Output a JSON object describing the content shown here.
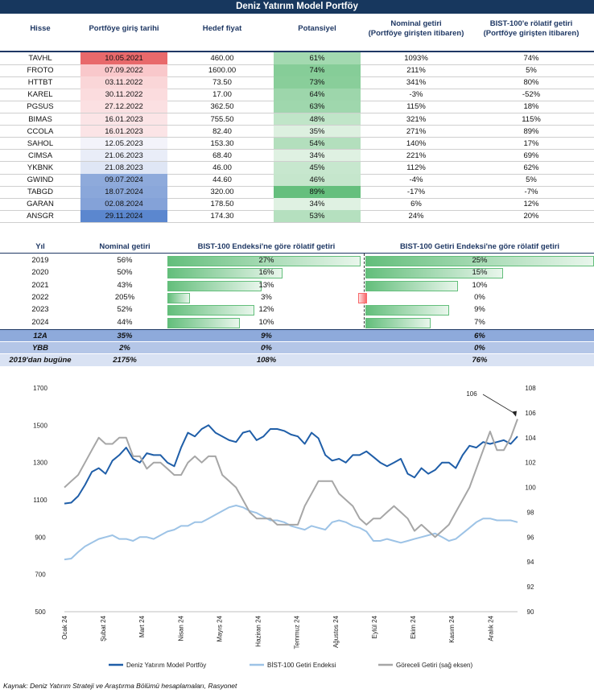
{
  "title": "Deniz Yatırım Model Portföy",
  "table1": {
    "headers": {
      "hisse": "Hisse",
      "giris": "Portföye giriş tarihi",
      "hedef": "Hedef fiyat",
      "potansiyel": "Potansiyel",
      "nominal_1": "Nominal getiri",
      "nominal_2": "(Portföye girişten itibaren)",
      "bist_1": "BIST-100'e rölatif getiri",
      "bist_2": "(Portföye girişten itibaren)"
    },
    "rows": [
      {
        "hisse": "TAVHL",
        "giris": "10.05.2021",
        "hedef": "460.00",
        "pot": "61%",
        "pot_val": 61,
        "nominal": "1093%",
        "relatif": "74%",
        "date_color": "#e8696b"
      },
      {
        "hisse": "FROTO",
        "giris": "07.09.2022",
        "hedef": "1600.00",
        "pot": "74%",
        "pot_val": 74,
        "nominal": "211%",
        "relatif": "5%",
        "date_color": "#f9c8cb"
      },
      {
        "hisse": "HTTBT",
        "giris": "03.11.2022",
        "hedef": "73.50",
        "pot": "73%",
        "pot_val": 73,
        "nominal": "341%",
        "relatif": "80%",
        "date_color": "#fad6d8"
      },
      {
        "hisse": "KAREL",
        "giris": "30.11.2022",
        "hedef": "17.00",
        "pot": "64%",
        "pot_val": 64,
        "nominal": "-3%",
        "relatif": "-52%",
        "date_color": "#fbdcde"
      },
      {
        "hisse": "PGSUS",
        "giris": "27.12.2022",
        "hedef": "362.50",
        "pot": "63%",
        "pot_val": 63,
        "nominal": "115%",
        "relatif": "18%",
        "date_color": "#fbe0e2"
      },
      {
        "hisse": "BIMAS",
        "giris": "16.01.2023",
        "hedef": "755.50",
        "pot": "48%",
        "pot_val": 48,
        "nominal": "321%",
        "relatif": "115%",
        "date_color": "#fbe4e6"
      },
      {
        "hisse": "CCOLA",
        "giris": "16.01.2023",
        "hedef": "82.40",
        "pot": "35%",
        "pot_val": 35,
        "nominal": "271%",
        "relatif": "89%",
        "date_color": "#fbe4e6"
      },
      {
        "hisse": "SAHOL",
        "giris": "12.05.2023",
        "hedef": "153.30",
        "pot": "54%",
        "pot_val": 54,
        "nominal": "140%",
        "relatif": "17%",
        "date_color": "#f3f3fa"
      },
      {
        "hisse": "CIMSA",
        "giris": "21.06.2023",
        "hedef": "68.40",
        "pot": "34%",
        "pot_val": 34,
        "nominal": "221%",
        "relatif": "69%",
        "date_color": "#e9edf8"
      },
      {
        "hisse": "YKBNK",
        "giris": "21.08.2023",
        "hedef": "46.00",
        "pot": "45%",
        "pot_val": 45,
        "nominal": "112%",
        "relatif": "62%",
        "date_color": "#dfe6f5"
      },
      {
        "hisse": "GWIND",
        "giris": "09.07.2024",
        "hedef": "44.60",
        "pot": "46%",
        "pot_val": 46,
        "nominal": "-4%",
        "relatif": "5%",
        "date_color": "#8eaadb"
      },
      {
        "hisse": "TABGD",
        "giris": "18.07.2024",
        "hedef": "320.00",
        "pot": "89%",
        "pot_val": 89,
        "nominal": "-17%",
        "relatif": "-7%",
        "date_color": "#8aa7da"
      },
      {
        "hisse": "GARAN",
        "giris": "02.08.2024",
        "hedef": "178.50",
        "pot": "34%",
        "pot_val": 34,
        "nominal": "6%",
        "relatif": "12%",
        "date_color": "#84a2d8"
      },
      {
        "hisse": "ANSGR",
        "giris": "29.11.2024",
        "hedef": "174.30",
        "pot": "53%",
        "pot_val": 53,
        "nominal": "24%",
        "relatif": "20%",
        "date_color": "#5b87cf"
      }
    ]
  },
  "table2": {
    "headers": {
      "yil": "Yıl",
      "nominal": "Nominal getiri",
      "bist": "BIST-100 Endeksi'ne göre rölatif getiri",
      "getiri": "BIST-100 Getiri Endeksi'ne göre rölatif getiri"
    },
    "rows": [
      {
        "yil": "2019",
        "nominal": "56%",
        "bist": "27%",
        "bist_val": 27,
        "getiri": "25%",
        "getiri_val": 25
      },
      {
        "yil": "2020",
        "nominal": "50%",
        "bist": "16%",
        "bist_val": 16,
        "getiri": "15%",
        "getiri_val": 15
      },
      {
        "yil": "2021",
        "nominal": "43%",
        "bist": "13%",
        "bist_val": 13,
        "getiri": "10%",
        "getiri_val": 10
      },
      {
        "yil": "2022",
        "nominal": "205%",
        "bist": "3%",
        "bist_val": 3,
        "getiri": "0%",
        "getiri_val": -0.4
      },
      {
        "yil": "2023",
        "nominal": "52%",
        "bist": "12%",
        "bist_val": 12,
        "getiri": "9%",
        "getiri_val": 9
      },
      {
        "yil": "2024",
        "nominal": "44%",
        "bist": "10%",
        "bist_val": 10,
        "getiri": "7%",
        "getiri_val": 7
      }
    ],
    "summary": [
      {
        "label": "12A",
        "nominal": "35%",
        "bist": "9%",
        "getiri": "6%",
        "color": "#8eaadb"
      },
      {
        "label": "YBB",
        "nominal": "2%",
        "bist": "0%",
        "getiri": "0%",
        "color": "#b4c6e7"
      },
      {
        "label": "2019'dan bugüne",
        "nominal": "2175%",
        "bist": "108%",
        "getiri": "76%",
        "color": "#d9e2f3"
      }
    ]
  },
  "chart_data": {
    "type": "line",
    "x_labels": [
      "Ocak 24",
      "Şubat 24",
      "Mart 24",
      "Nisan 24",
      "Mayıs 24",
      "Haziran 24",
      "Temmuz 24",
      "Ağustos 24",
      "Eylül 24",
      "Ekim 24",
      "Kasım 24",
      "Aralık 24"
    ],
    "y_left": {
      "min": 500,
      "max": 1700,
      "ticks": [
        500,
        700,
        900,
        1100,
        1300,
        1500,
        1700
      ]
    },
    "y_right": {
      "min": 90,
      "max": 108,
      "ticks": [
        90,
        92,
        94,
        96,
        98,
        100,
        102,
        104,
        106,
        108
      ]
    },
    "annotation": "106",
    "colors": {
      "portfoy": "#1f5ea8",
      "bist": "#9dc3e6",
      "goreceli": "#a6a6a6"
    },
    "series": [
      {
        "name": "Deniz Yatırım Model Portföy",
        "axis": "left",
        "values": [
          1080,
          1085,
          1120,
          1180,
          1250,
          1270,
          1240,
          1310,
          1340,
          1380,
          1320,
          1300,
          1350,
          1340,
          1340,
          1300,
          1280,
          1380,
          1460,
          1440,
          1480,
          1500,
          1460,
          1440,
          1420,
          1410,
          1460,
          1470,
          1420,
          1440,
          1480,
          1480,
          1470,
          1450,
          1440,
          1400,
          1460,
          1430,
          1340,
          1310,
          1320,
          1300,
          1340,
          1340,
          1360,
          1330,
          1300,
          1280,
          1300,
          1320,
          1240,
          1220,
          1270,
          1240,
          1260,
          1300,
          1300,
          1270,
          1340,
          1390,
          1380,
          1410,
          1400,
          1410,
          1420,
          1400,
          1440
        ]
      },
      {
        "name": "BİST-100 Getiri Endeksi",
        "axis": "left",
        "values": [
          780,
          785,
          820,
          850,
          870,
          890,
          900,
          910,
          890,
          890,
          880,
          900,
          900,
          890,
          910,
          930,
          940,
          960,
          960,
          980,
          980,
          1000,
          1020,
          1040,
          1060,
          1070,
          1060,
          1040,
          1030,
          1010,
          990,
          990,
          980,
          960,
          950,
          940,
          960,
          950,
          940,
          980,
          990,
          980,
          960,
          950,
          930,
          880,
          880,
          890,
          880,
          870,
          880,
          890,
          900,
          910,
          920,
          900,
          880,
          890,
          920,
          950,
          980,
          1000,
          1000,
          990,
          990,
          990,
          980
        ]
      },
      {
        "name": "Göreceli Getiri (sağ eksen)",
        "axis": "right",
        "values": [
          100,
          100.5,
          101,
          102,
          103,
          104,
          103.5,
          103.5,
          104,
          104,
          102.5,
          102.5,
          101.5,
          102,
          102,
          101.5,
          101,
          101,
          102,
          102.5,
          102,
          102.5,
          102.5,
          101,
          100.5,
          100,
          99,
          98,
          97.5,
          97.5,
          97.5,
          97,
          97,
          97,
          97,
          98.5,
          99.5,
          100.5,
          100.5,
          100.5,
          99.5,
          99,
          98.5,
          97.5,
          97,
          97.5,
          97.5,
          98,
          98.5,
          98,
          97.5,
          96.5,
          97,
          96.5,
          96,
          96.5,
          97,
          98,
          99,
          100,
          101.5,
          103,
          104.5,
          103,
          103,
          104,
          105.5
        ]
      }
    ]
  },
  "source": "Kaynak: Deniz Yatırım Strateji ve Araştırma Bölümü hesaplamaları, Rasyonet"
}
